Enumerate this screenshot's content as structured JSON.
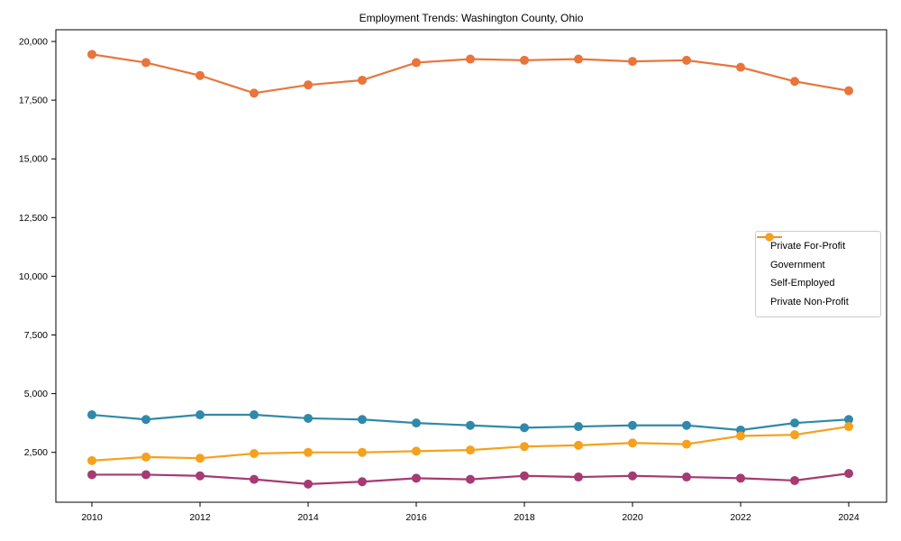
{
  "chart_data": {
    "type": "line",
    "title": "Employment Trends: Washington County, Ohio",
    "x": [
      2010,
      2011,
      2012,
      2013,
      2014,
      2015,
      2016,
      2017,
      2018,
      2019,
      2020,
      2021,
      2022,
      2023,
      2024
    ],
    "xtick_labels": [
      "2010",
      "2012",
      "2014",
      "2016",
      "2018",
      "2020",
      "2022",
      "2024"
    ],
    "xtick_values": [
      2010,
      2012,
      2014,
      2016,
      2018,
      2020,
      2022,
      2024
    ],
    "ytick_values": [
      2500,
      5000,
      7500,
      10000,
      12500,
      15000,
      17500,
      20000
    ],
    "ytick_labels": [
      "2,500",
      "5,000",
      "7,500",
      "10,000",
      "12,500",
      "15,000",
      "17,500",
      "20,000"
    ],
    "ylim": [
      300,
      20500
    ],
    "grid": false,
    "legend_position": "center-right",
    "series": [
      {
        "name": "Private For-Profit",
        "color": "#E8753C",
        "values": [
          19450,
          19100,
          18550,
          17800,
          18150,
          18350,
          19100,
          19250,
          19200,
          19250,
          19150,
          19200,
          18900,
          18300,
          17900
        ]
      },
      {
        "name": "Government",
        "color": "#3189A9",
        "values": [
          4100,
          3900,
          4100,
          4100,
          3950,
          3900,
          3750,
          3650,
          3550,
          3600,
          3650,
          3650,
          3450,
          3750,
          3900
        ]
      },
      {
        "name": "Self-Employed",
        "color": "#A63A72",
        "values": [
          1550,
          1550,
          1500,
          1350,
          1150,
          1250,
          1400,
          1350,
          1500,
          1450,
          1500,
          1450,
          1400,
          1300,
          1600
        ]
      },
      {
        "name": "Private Non-Profit",
        "color": "#F5A11C",
        "values": [
          2150,
          2300,
          2250,
          2450,
          2500,
          2500,
          2550,
          2600,
          2750,
          2800,
          2900,
          2850,
          3200,
          3250,
          3600
        ]
      }
    ]
  },
  "colors": {
    "background": "#ffffff",
    "spine": "#000000",
    "tick_text": "#000000",
    "legend_border": "#cccccc"
  }
}
